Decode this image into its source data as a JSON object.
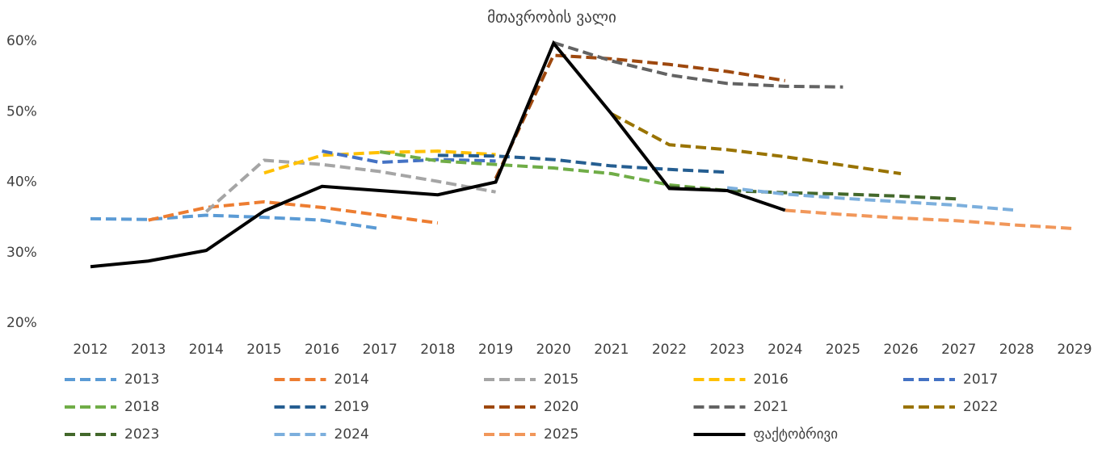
{
  "chart_data": {
    "type": "line",
    "title": "მთავრობის ვალი",
    "categories": [
      "2012",
      "2013",
      "2014",
      "2015",
      "2016",
      "2017",
      "2018",
      "2019",
      "2020",
      "2021",
      "2022",
      "2023",
      "2024",
      "2025",
      "2026",
      "2027",
      "2028",
      "2029"
    ],
    "ylim": [
      20,
      60
    ],
    "yticks": [
      {
        "value": 20,
        "label": "20%"
      },
      {
        "value": 30,
        "label": "30%"
      },
      {
        "value": 40,
        "label": "40%"
      },
      {
        "value": 50,
        "label": "50%"
      },
      {
        "value": 60,
        "label": "60%"
      }
    ],
    "grid": false,
    "legend": "bottom",
    "series": [
      {
        "name": "2013",
        "color": "#5b9bd5",
        "dashed": true,
        "values": [
          34.8,
          34.7,
          35.3,
          35.0,
          34.6,
          33.4,
          null,
          null,
          null,
          null,
          null,
          null,
          null,
          null,
          null,
          null,
          null,
          null
        ]
      },
      {
        "name": "2014",
        "color": "#ed7d31",
        "dashed": true,
        "values": [
          null,
          34.6,
          36.4,
          37.2,
          36.4,
          35.3,
          34.2,
          null,
          null,
          null,
          null,
          null,
          null,
          null,
          null,
          null,
          null,
          null
        ]
      },
      {
        "name": "2015",
        "color": "#a5a5a5",
        "dashed": true,
        "values": [
          null,
          null,
          35.8,
          43.1,
          42.5,
          41.5,
          40.1,
          38.6,
          null,
          null,
          null,
          null,
          null,
          null,
          null,
          null,
          null,
          null
        ]
      },
      {
        "name": "2016",
        "color": "#ffc000",
        "dashed": true,
        "values": [
          null,
          null,
          null,
          41.3,
          43.8,
          44.2,
          44.4,
          43.9,
          null,
          null,
          null,
          null,
          null,
          null,
          null,
          null,
          null,
          null
        ]
      },
      {
        "name": "2017",
        "color": "#4472c4",
        "dashed": true,
        "values": [
          null,
          null,
          null,
          null,
          44.4,
          42.8,
          43.2,
          43.0,
          null,
          null,
          null,
          null,
          null,
          null,
          null,
          null,
          null,
          null
        ]
      },
      {
        "name": "2018",
        "color": "#70ad47",
        "dashed": true,
        "values": [
          null,
          null,
          null,
          null,
          null,
          44.3,
          43.0,
          42.5,
          42.0,
          41.2,
          39.6,
          38.8,
          null,
          null,
          null,
          null,
          null,
          null
        ]
      },
      {
        "name": "2019",
        "color": "#255e91",
        "dashed": true,
        "values": [
          null,
          null,
          null,
          null,
          null,
          null,
          43.8,
          43.7,
          43.2,
          42.3,
          41.8,
          41.4,
          null,
          null,
          null,
          null,
          null,
          null
        ]
      },
      {
        "name": "2020",
        "color": "#9e480e",
        "dashed": true,
        "values": [
          null,
          null,
          null,
          null,
          null,
          null,
          null,
          40.5,
          58.0,
          57.5,
          56.7,
          55.7,
          54.4,
          null,
          null,
          null,
          null,
          null
        ]
      },
      {
        "name": "2021",
        "color": "#636363",
        "dashed": true,
        "values": [
          null,
          null,
          null,
          null,
          null,
          null,
          null,
          null,
          59.8,
          57.2,
          55.2,
          54.0,
          53.6,
          53.5,
          null,
          null,
          null,
          null
        ]
      },
      {
        "name": "2022",
        "color": "#997300",
        "dashed": true,
        "values": [
          null,
          null,
          null,
          null,
          null,
          null,
          null,
          null,
          null,
          49.7,
          45.3,
          44.6,
          43.6,
          42.4,
          41.2,
          null,
          null,
          null
        ]
      },
      {
        "name": "2023",
        "color": "#43682b",
        "dashed": true,
        "values": [
          null,
          null,
          null,
          null,
          null,
          null,
          null,
          null,
          null,
          null,
          39.3,
          38.8,
          38.5,
          38.3,
          38.0,
          37.6,
          null,
          null
        ]
      },
      {
        "name": "2024",
        "color": "#7cafdd",
        "dashed": true,
        "values": [
          null,
          null,
          null,
          null,
          null,
          null,
          null,
          null,
          null,
          null,
          null,
          39.2,
          38.3,
          37.7,
          37.2,
          36.7,
          36.0,
          null
        ]
      },
      {
        "name": "2025",
        "color": "#f1975a",
        "dashed": true,
        "values": [
          null,
          null,
          null,
          null,
          null,
          null,
          null,
          null,
          null,
          null,
          null,
          null,
          36.0,
          35.4,
          34.9,
          34.5,
          33.9,
          33.4
        ]
      },
      {
        "name": "ფაქტობრივი",
        "color": "#000000",
        "dashed": false,
        "values": [
          28.0,
          28.8,
          30.3,
          35.9,
          39.4,
          38.8,
          38.2,
          40.0,
          59.7,
          49.7,
          39.1,
          38.8,
          36.0,
          null,
          null,
          null,
          null,
          null
        ]
      }
    ]
  }
}
